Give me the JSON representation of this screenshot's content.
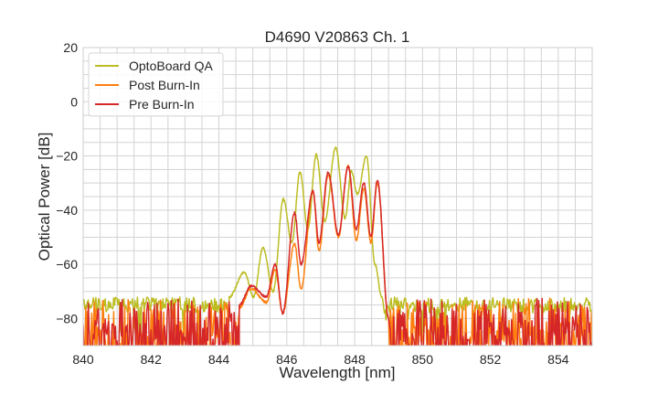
{
  "chart_data": {
    "type": "line",
    "title": "D4690 V20863 Ch. 1",
    "xlabel": "Wavelength [nm]",
    "ylabel": "Optical Power [dB]",
    "xlim": [
      840,
      855
    ],
    "ylim": [
      -90,
      20
    ],
    "xticks": [
      840,
      842,
      844,
      846,
      848,
      850,
      852,
      854
    ],
    "yticks": [
      -80,
      -60,
      -40,
      -20,
      0,
      20
    ],
    "xtick_labels": [
      "840",
      "842",
      "844",
      "846",
      "848",
      "850",
      "852",
      "854"
    ],
    "ytick_labels": [
      "−80",
      "−60",
      "−40",
      "−20",
      "0",
      "20"
    ],
    "grid": true,
    "minor_grid": {
      "x_step": 0.5,
      "y_step": 5
    },
    "legend_placement": "upper-left",
    "series": [
      {
        "name": "OptoBoard QA",
        "color": "#bcbd22",
        "noise_floor": {
          "level": -74,
          "min": -80,
          "left": [
            840,
            844.3
          ],
          "right": [
            848.8,
            855
          ]
        },
        "points": [
          [
            844.3,
            -72
          ],
          [
            844.75,
            -63
          ],
          [
            845.02,
            -72
          ],
          [
            845.3,
            -54
          ],
          [
            845.6,
            -70
          ],
          [
            845.9,
            -36
          ],
          [
            846.15,
            -52
          ],
          [
            846.39,
            -26
          ],
          [
            846.62,
            -47
          ],
          [
            846.87,
            -19.5
          ],
          [
            847.12,
            -44
          ],
          [
            847.44,
            -17
          ],
          [
            847.72,
            -43
          ],
          [
            847.9,
            -25.5
          ],
          [
            848.08,
            -34
          ],
          [
            848.35,
            -20
          ],
          [
            848.6,
            -60
          ],
          [
            848.8,
            -72
          ]
        ]
      },
      {
        "name": "Post Burn-In",
        "color": "#ff7f0e",
        "noise_floor": {
          "level": -80,
          "min": -90,
          "left": [
            840,
            844.6
          ],
          "right": [
            849.0,
            855
          ]
        },
        "points": [
          [
            844.6,
            -76
          ],
          [
            844.95,
            -69
          ],
          [
            845.4,
            -74
          ],
          [
            845.66,
            -62
          ],
          [
            845.88,
            -78
          ],
          [
            846.23,
            -52.5
          ],
          [
            846.42,
            -69
          ],
          [
            846.77,
            -33
          ],
          [
            846.95,
            -55
          ],
          [
            847.22,
            -27
          ],
          [
            847.52,
            -50
          ],
          [
            847.81,
            -23.5
          ],
          [
            848.05,
            -51
          ],
          [
            848.27,
            -32
          ],
          [
            848.48,
            -52
          ],
          [
            848.67,
            -30
          ],
          [
            849.0,
            -80
          ]
        ]
      },
      {
        "name": "Pre Burn-In",
        "color": "#d62728",
        "noise_floor": {
          "level": -80,
          "min": -90,
          "left": [
            840,
            844.6
          ],
          "right": [
            849.0,
            855
          ]
        },
        "points": [
          [
            844.6,
            -75
          ],
          [
            844.95,
            -68
          ],
          [
            845.4,
            -72
          ],
          [
            845.66,
            -60
          ],
          [
            845.88,
            -78
          ],
          [
            846.23,
            -41
          ],
          [
            846.42,
            -60
          ],
          [
            846.77,
            -33
          ],
          [
            846.95,
            -52
          ],
          [
            847.22,
            -26
          ],
          [
            847.52,
            -49
          ],
          [
            847.81,
            -24
          ],
          [
            848.05,
            -47
          ],
          [
            848.27,
            -30
          ],
          [
            848.48,
            -50
          ],
          [
            848.67,
            -29
          ],
          [
            849.0,
            -80
          ]
        ]
      }
    ]
  }
}
